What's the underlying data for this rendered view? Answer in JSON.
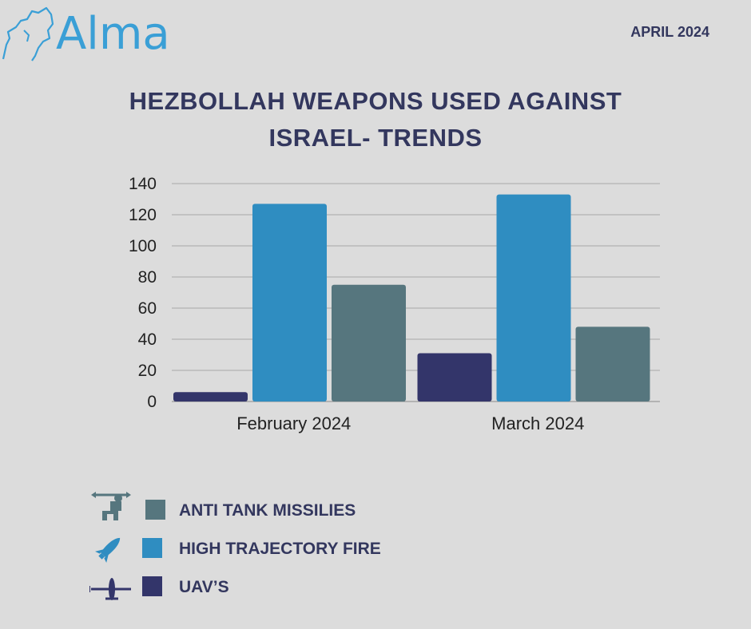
{
  "logo": {
    "text": "Alma"
  },
  "date": "APRIL 2024",
  "title": {
    "line1": "HEZBOLLAH WEAPONS USED AGAINST",
    "line2": "ISRAEL- TRENDS"
  },
  "colors": {
    "uav": "#33356a",
    "high_trajectory": "#2f8dc1",
    "anti_tank": "#56767e",
    "text": "#33375e",
    "logo": "#3a9fd6",
    "grid": "#a8a8a8"
  },
  "legend": [
    {
      "label": "ANTI TANK MISSILIES",
      "icon": "anti-tank-soldier-icon",
      "series": "anti_tank"
    },
    {
      "label": "HIGH TRAJECTORY FIRE",
      "icon": "rocket-icon",
      "series": "high_trajectory"
    },
    {
      "label": "UAV’S",
      "icon": "drone-icon",
      "series": "uav"
    }
  ],
  "chart_data": {
    "type": "bar",
    "categories": [
      "February 2024",
      "March 2024"
    ],
    "series": [
      {
        "name": "UAV’S",
        "key": "uav",
        "values": [
          6,
          31
        ]
      },
      {
        "name": "HIGH TRAJECTORY FIRE",
        "key": "high_trajectory",
        "values": [
          127,
          133
        ]
      },
      {
        "name": "ANTI TANK MISSILIES",
        "key": "anti_tank",
        "values": [
          75,
          48
        ]
      }
    ],
    "yticks": [
      0,
      20,
      40,
      60,
      80,
      100,
      120,
      140
    ],
    "ylim": [
      0,
      140
    ],
    "grid": true,
    "legend_position": "bottom-left"
  }
}
